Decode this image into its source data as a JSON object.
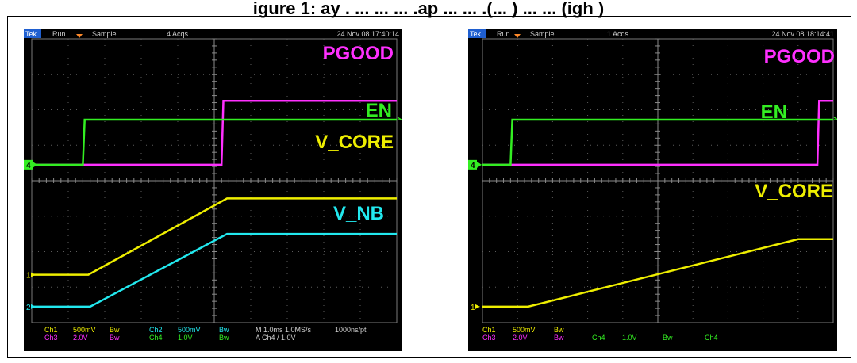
{
  "title": "igure 1:  ay . ... ... ... .ap ... ... .(... ) ... ... (igh )",
  "chart_data": [
    {
      "type": "line",
      "header": {
        "brand": "Tek",
        "mode": "Run",
        "acq": "Sample",
        "acqs": "4 Acqs",
        "date": "24 Nov 08 17:40:14"
      },
      "footer": {
        "ch1": "Ch1",
        "ch1_scale": "500mV",
        "ch1_bw": "Bw",
        "ch2": "Ch2",
        "ch2_scale": "500mV",
        "ch2_bw": "Bw",
        "ch3": "Ch3",
        "ch3_scale": "2.0V",
        "ch3_bw": "Bw",
        "ch4": "Ch4",
        "ch4_scale": "1.0V",
        "ch4_bw": "Bw",
        "timebase": "M 1.0ms 1.0MS/s",
        "record": "1000ns/pt",
        "trigger": "A  Ch4  /  1.0V"
      },
      "markers": {
        "ch4": "4",
        "ch1": "1",
        "ch2": "2"
      },
      "x_range_div": [
        0,
        10
      ],
      "y_range_div": [
        0,
        8
      ],
      "grid": true,
      "series": [
        {
          "name": "PGOOD",
          "color": "#ff30ff",
          "points": [
            [
              0,
              4.45
            ],
            [
              5.2,
              4.45
            ],
            [
              5.25,
              6.25
            ],
            [
              10,
              6.25
            ]
          ]
        },
        {
          "name": "EN",
          "color": "#33ee22",
          "points": [
            [
              0,
              4.45
            ],
            [
              1.4,
              4.45
            ],
            [
              1.45,
              5.72
            ],
            [
              10,
              5.72
            ]
          ]
        },
        {
          "name": "V_CORE",
          "color": "#eeee00",
          "points": [
            [
              0,
              1.35
            ],
            [
              1.55,
              1.35
            ],
            [
              5.35,
              3.5
            ],
            [
              10,
              3.5
            ]
          ]
        },
        {
          "name": "V_NB",
          "color": "#22e8ee",
          "points": [
            [
              0,
              0.45
            ],
            [
              1.6,
              0.45
            ],
            [
              5.35,
              2.5
            ],
            [
              10,
              2.5
            ]
          ]
        }
      ]
    },
    {
      "type": "line",
      "header": {
        "brand": "Tek",
        "mode": "Run",
        "acq": "Sample",
        "acqs": "1 Acqs",
        "date": "24 Nov 08 18:14:41"
      },
      "footer": {
        "ch1": "Ch1",
        "ch1_scale": "500mV",
        "ch1_bw": "Bw",
        "ch3": "Ch3",
        "ch3_scale": "2.0V",
        "ch3_bw": "Bw",
        "ch4": "Ch4",
        "ch4_scale": "1.0V",
        "ch4_bw": "Bw",
        "trig_ch": "Ch4"
      },
      "markers": {
        "ch4": "4",
        "ch1": "1"
      },
      "x_range_div": [
        0,
        10
      ],
      "y_range_div": [
        0,
        8
      ],
      "grid": true,
      "series": [
        {
          "name": "PGOOD",
          "color": "#ff30ff",
          "points": [
            [
              0,
              4.45
            ],
            [
              9.55,
              4.45
            ],
            [
              9.6,
              6.25
            ],
            [
              10,
              6.25
            ]
          ]
        },
        {
          "name": "EN",
          "color": "#33ee22",
          "points": [
            [
              0,
              4.45
            ],
            [
              0.8,
              4.45
            ],
            [
              0.85,
              5.72
            ],
            [
              10,
              5.72
            ]
          ]
        },
        {
          "name": "V_CORE",
          "color": "#eeee00",
          "points": [
            [
              0,
              0.45
            ],
            [
              1.3,
              0.45
            ],
            [
              9.0,
              2.35
            ],
            [
              10,
              2.35
            ]
          ]
        }
      ]
    }
  ]
}
